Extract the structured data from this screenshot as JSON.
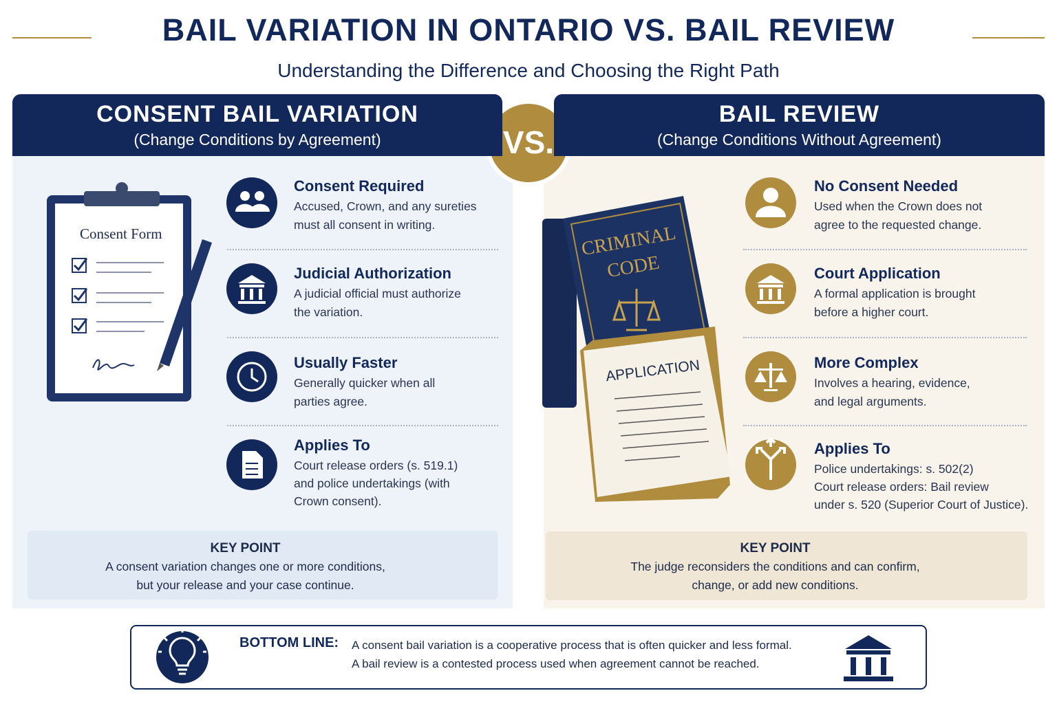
{
  "header": {
    "title": "BAIL VARIATION IN ONTARIO VS. BAIL REVIEW",
    "subtitle": "Understanding the Difference and Choosing the Right Path"
  },
  "vs": "VS.",
  "left": {
    "heading": "CONSENT BAIL VARIATION",
    "subheading": "(Change Conditions by Agreement)",
    "illustration": {
      "form_title": "Consent Form"
    },
    "items": [
      {
        "title": "Consent Required",
        "lines": [
          "Accused, Crown, and any sureties",
          "must all consent in writing."
        ]
      },
      {
        "title": "Judicial Authorization",
        "lines": [
          "A judicial official must authorize",
          "the variation."
        ]
      },
      {
        "title": "Usually Faster",
        "lines": [
          "Generally quicker when all",
          "parties agree."
        ]
      },
      {
        "title": "Applies To",
        "lines": [
          "Court release orders (s. 519.1)",
          "and police undertakings (with",
          "Crown consent)."
        ]
      }
    ],
    "key_point": {
      "label": "KEY POINT",
      "lines": [
        "A consent variation changes one or more conditions,",
        "but your release and your case continue."
      ]
    }
  },
  "right": {
    "heading": "BAIL REVIEW",
    "subheading": "(Change Conditions Without Agreement)",
    "illustration": {
      "book_title": [
        "CRIMINAL",
        "CODE"
      ],
      "document_title": "APPLICATION"
    },
    "items": [
      {
        "title": "No Consent Needed",
        "lines": [
          "Used when the Crown does not",
          "agree to the requested change."
        ]
      },
      {
        "title": "Court Application",
        "lines": [
          "A formal application is brought",
          "before a higher court."
        ]
      },
      {
        "title": "More Complex",
        "lines": [
          "Involves a hearing, evidence,",
          "and legal arguments."
        ]
      },
      {
        "title": "Applies To",
        "lines": [
          "Police undertakings: s. 502(2)",
          "Court release orders: Bail review",
          "under s. 520 (Superior Court of Justice)."
        ]
      }
    ],
    "key_point": {
      "label": "KEY POINT",
      "lines": [
        "The judge reconsiders the conditions and can confirm,",
        "change, or add new conditions."
      ]
    }
  },
  "bottom_line": {
    "label": "BOTTOM LINE:",
    "lines": [
      "A consent bail variation is a cooperative process that is often quicker and less formal.",
      "A bail review is a contested process used when agreement cannot be reached."
    ]
  }
}
